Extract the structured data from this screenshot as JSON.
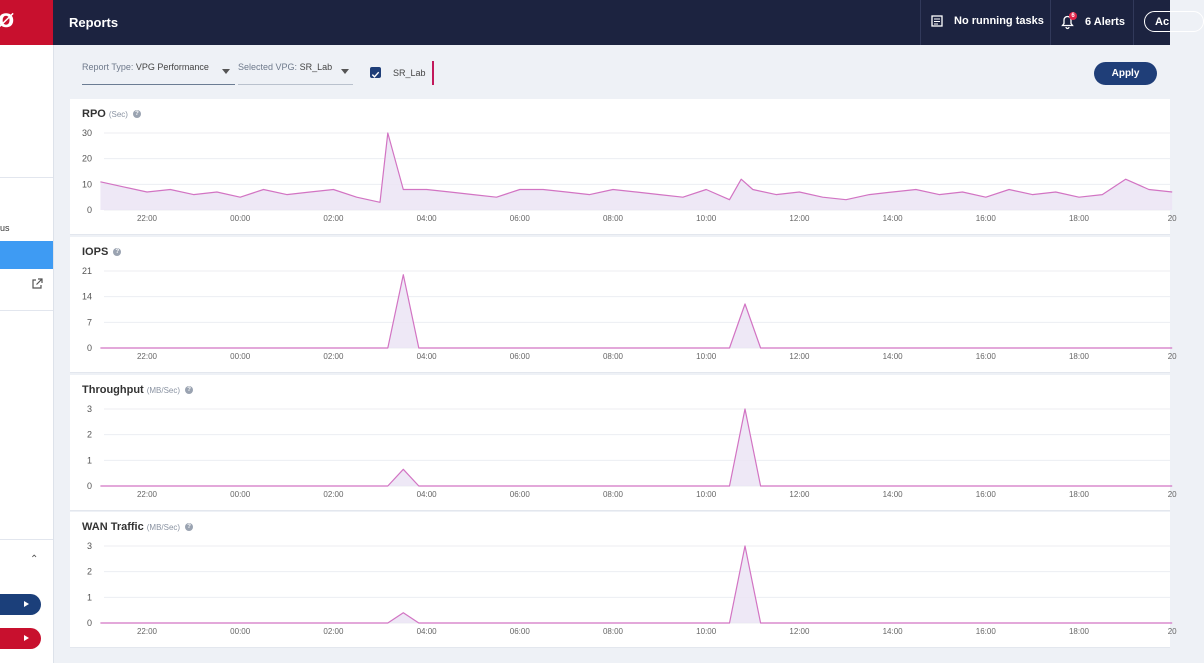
{
  "app": {
    "logo_text": "Ø"
  },
  "sidebar": {
    "cut_label": "us"
  },
  "header": {
    "title": "Reports",
    "tasks_label": "No running tasks",
    "alerts_label": "6 Alerts",
    "alerts_badge": "6",
    "account_label": "Ac"
  },
  "filters": {
    "report_type_label": "Report Type:",
    "report_type_value": "VPG Performance",
    "vpg_label": "Selected VPG:",
    "vpg_value": "SR_Lab",
    "checkbox_label": "SR_Lab",
    "checkbox_checked": true,
    "apply_label": "Apply"
  },
  "colors": {
    "header_bg": "#1c2340",
    "brand_red": "#c8102e",
    "line": "#d274c3",
    "fill": "#ebe4f5",
    "accent_blue": "#3e9bf3"
  },
  "chart_data": [
    {
      "type": "area",
      "title": "RPO",
      "unit": "(Sec)",
      "yticks": [
        "30",
        "20",
        "10",
        "0"
      ],
      "ylim": [
        0,
        30
      ],
      "xticks": [
        "22:00",
        "00:00",
        "02:00",
        "04:00",
        "06:00",
        "08:00",
        "10:00",
        "12:00",
        "14:00",
        "16:00",
        "18:00",
        "20"
      ],
      "x": [
        "21:00",
        "21:30",
        "22:00",
        "22:30",
        "23:00",
        "23:30",
        "00:00",
        "00:30",
        "01:00",
        "01:30",
        "02:00",
        "02:30",
        "03:00",
        "03:10",
        "03:30",
        "04:00",
        "04:30",
        "05:00",
        "05:30",
        "06:00",
        "06:30",
        "07:00",
        "07:30",
        "08:00",
        "08:30",
        "09:00",
        "09:30",
        "10:00",
        "10:30",
        "10:45",
        "11:00",
        "11:30",
        "12:00",
        "12:30",
        "13:00",
        "13:30",
        "14:00",
        "14:30",
        "15:00",
        "15:30",
        "16:00",
        "16:30",
        "17:00",
        "17:30",
        "18:00",
        "18:30",
        "19:00",
        "19:30",
        "20:00"
      ],
      "values": [
        11,
        9,
        7,
        8,
        6,
        7,
        5,
        8,
        6,
        7,
        8,
        5,
        3,
        30,
        8,
        8,
        7,
        6,
        5,
        8,
        8,
        7,
        6,
        8,
        7,
        6,
        5,
        8,
        4,
        12,
        8,
        6,
        7,
        5,
        4,
        6,
        7,
        8,
        6,
        7,
        5,
        8,
        6,
        7,
        5,
        6,
        12,
        8,
        7
      ]
    },
    {
      "type": "area",
      "title": "IOPS",
      "unit": "",
      "yticks": [
        "21",
        "14",
        "7",
        "0"
      ],
      "ylim": [
        0,
        21
      ],
      "xticks": [
        "22:00",
        "00:00",
        "02:00",
        "04:00",
        "06:00",
        "08:00",
        "10:00",
        "12:00",
        "14:00",
        "16:00",
        "18:00",
        "20"
      ],
      "x": [
        "21:00",
        "03:10",
        "03:30",
        "03:50",
        "10:30",
        "10:50",
        "11:10",
        "20:00"
      ],
      "values": [
        0,
        0,
        20,
        0,
        0,
        12,
        0,
        0
      ]
    },
    {
      "type": "area",
      "title": "Throughput",
      "unit": "(MB/Sec)",
      "yticks": [
        "3",
        "2",
        "1",
        "0"
      ],
      "ylim": [
        0,
        3
      ],
      "xticks": [
        "22:00",
        "00:00",
        "02:00",
        "04:00",
        "06:00",
        "08:00",
        "10:00",
        "12:00",
        "14:00",
        "16:00",
        "18:00",
        "20"
      ],
      "x": [
        "21:00",
        "03:10",
        "03:30",
        "03:50",
        "10:30",
        "10:50",
        "11:10",
        "20:00"
      ],
      "values": [
        0,
        0,
        0.65,
        0,
        0,
        3,
        0,
        0
      ]
    },
    {
      "type": "area",
      "title": "WAN Traffic",
      "unit": "(MB/Sec)",
      "yticks": [
        "3",
        "2",
        "1",
        "0"
      ],
      "ylim": [
        0,
        3
      ],
      "xticks": [
        "22:00",
        "00:00",
        "02:00",
        "04:00",
        "06:00",
        "08:00",
        "10:00",
        "12:00",
        "14:00",
        "16:00",
        "18:00",
        "20"
      ],
      "x": [
        "21:00",
        "03:10",
        "03:30",
        "03:50",
        "10:30",
        "10:50",
        "11:10",
        "20:00"
      ],
      "values": [
        0,
        0,
        0.4,
        0,
        0,
        3,
        0,
        0
      ]
    }
  ]
}
